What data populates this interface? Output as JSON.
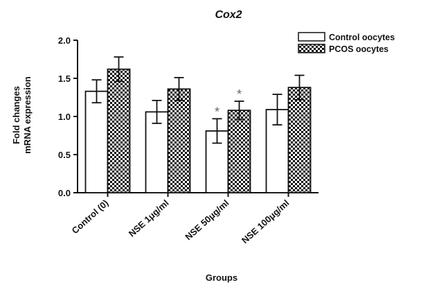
{
  "chart_data": {
    "type": "bar",
    "title": "Cox2",
    "xlabel": "Groups",
    "ylabel": [
      "Fold changes",
      "mRNA expression"
    ],
    "ylim": [
      0,
      2.0
    ],
    "yticks": [
      "0.0",
      "0.5",
      "1.0",
      "1.5",
      "2.0"
    ],
    "categories": [
      "Control (0)",
      "NSE 1μg/ml",
      "NSE 50μg/ml",
      "NSE 100μg/ml"
    ],
    "series": [
      {
        "name": "Control oocytes",
        "pattern": "open",
        "values": [
          1.33,
          1.06,
          0.81,
          1.09
        ],
        "errors": [
          0.15,
          0.15,
          0.16,
          0.2
        ]
      },
      {
        "name": "PCOS oocytes",
        "pattern": "checkered",
        "values": [
          1.62,
          1.36,
          1.08,
          1.38
        ],
        "errors": [
          0.16,
          0.15,
          0.12,
          0.16
        ]
      }
    ],
    "annotations": [
      {
        "category": "NSE 50μg/ml",
        "series": "Control oocytes",
        "text": "*"
      },
      {
        "category": "NSE 50μg/ml",
        "series": "PCOS oocytes",
        "text": "*"
      }
    ],
    "legend_position": "top-right",
    "grid": false
  }
}
